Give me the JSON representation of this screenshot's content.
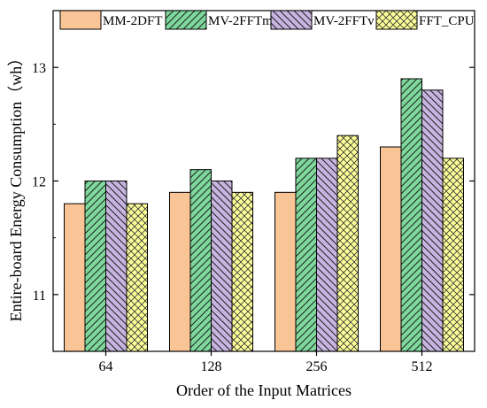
{
  "chart_data": {
    "type": "bar",
    "title": "",
    "xlabel": "Order of the Input Matrices",
    "ylabel": "Entire-board Energy Consumption（wh）",
    "categories": [
      "64",
      "128",
      "256",
      "512"
    ],
    "ylim": [
      10.5,
      13.5
    ],
    "yticks": [
      11,
      12,
      13
    ],
    "grid": false,
    "legend_position": "top",
    "series": [
      {
        "name": "MM-2DFT",
        "values": [
          11.8,
          11.9,
          11.9,
          12.3
        ],
        "color": "#f9c597",
        "pattern": "solid"
      },
      {
        "name": "MV-2FFTm",
        "values": [
          12.0,
          12.1,
          12.2,
          12.9
        ],
        "color": "#7dd89b",
        "pattern": "back-diagonal-hatch"
      },
      {
        "name": "MV-2FFTv",
        "values": [
          12.0,
          12.0,
          12.2,
          12.8
        ],
        "color": "#c8b4e0",
        "pattern": "back-diagonal-hatch"
      },
      {
        "name": "FFT_CPU",
        "values": [
          11.8,
          11.9,
          12.4,
          12.2
        ],
        "color": "#ffff99",
        "pattern": "cross-hatch"
      }
    ]
  }
}
